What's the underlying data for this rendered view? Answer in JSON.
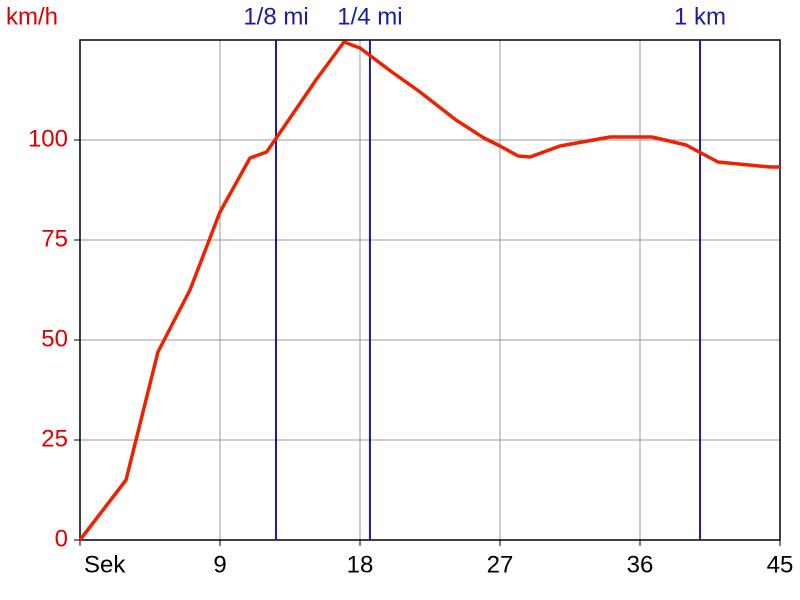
{
  "chart_data": {
    "type": "line",
    "y_label": "km/h",
    "x": [
      0,
      2.96,
      5.01,
      7.07,
      9,
      10.93,
      12,
      13.5,
      15.17,
      16.97,
      18,
      20.05,
      21.86,
      24.17,
      25.97,
      27,
      28.16,
      28.93,
      30.86,
      34.07,
      36.77,
      38.96,
      41.01,
      44.36,
      45
    ],
    "values": [
      0,
      15,
      47,
      62.5,
      82,
      95.5,
      97,
      105.5,
      115,
      124.5,
      123,
      117,
      112,
      105,
      100.5,
      98.5,
      96,
      95.75,
      98.5,
      100.75,
      100.75,
      98.75,
      94.5,
      93.25,
      93.25
    ],
    "color": "#ee2200",
    "xlim": [
      0,
      45
    ],
    "xticks": [
      {
        "value": 0,
        "label": "Sek"
      },
      9,
      18,
      27,
      36,
      45
    ],
    "ylim": [
      0,
      125
    ],
    "yticks": [
      0,
      25,
      50,
      75,
      100
    ],
    "grid": true,
    "markers": [
      {
        "label": "1/8 mi",
        "x": 12.6
      },
      {
        "label": "1/4 mi",
        "x": 18.64
      },
      {
        "label": "1 km",
        "x": 39.86
      }
    ],
    "marker_color": "#1a1aa8",
    "axis_label_color": "#dd0000"
  }
}
